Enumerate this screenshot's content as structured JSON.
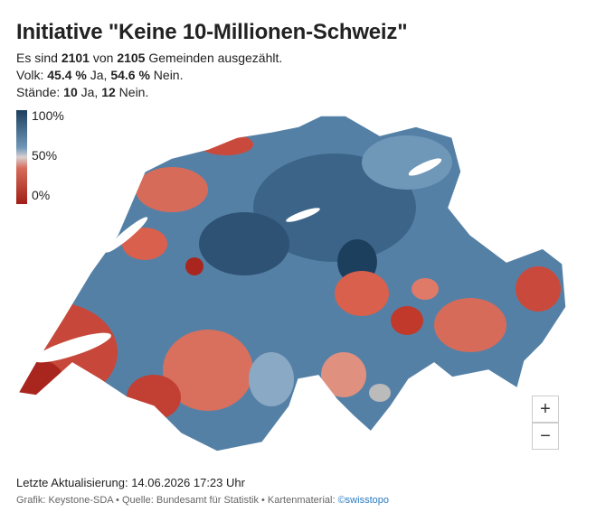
{
  "header": {
    "title": "Initiative \"Keine 10-Millionen-Schweiz\"",
    "lines": [
      [
        "Es sind ",
        "2101",
        " von ",
        "2105",
        " Gemeinden ausgezählt."
      ],
      [
        "Volk: ",
        "45.4 %",
        " Ja, ",
        "54.6 %",
        " Nein."
      ],
      [
        "Stände: ",
        "10",
        " Ja, ",
        "12",
        " Nein."
      ]
    ]
  },
  "legend": {
    "labels": [
      "100%",
      "50%",
      "0%"
    ]
  },
  "controls": {
    "zoom_in": "+",
    "zoom_out": "−"
  },
  "footer": {
    "updated": "Letzte Aktualisierung: 14.06.2026 17:23 Uhr",
    "credits": "Grafik: Keystone-SDA • Quelle: Bundesamt für Statistik • Kartenmaterial: ",
    "link": "©swisstopo"
  }
}
